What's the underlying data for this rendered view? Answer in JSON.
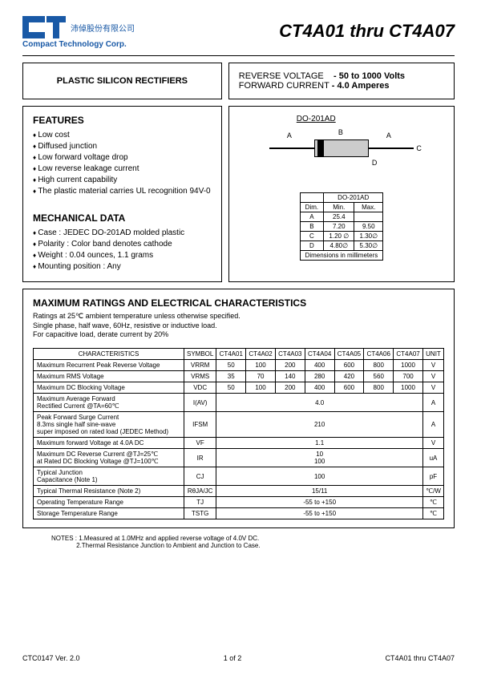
{
  "company": {
    "name_cn": "沛倬股份有限公司",
    "name_en": "Compact Technology Corp."
  },
  "title": "CT4A01 thru CT4A07",
  "header_boxes": {
    "left_title": "PLASTIC SILICON RECTIFIERS",
    "rv_label": "REVERSE VOLTAGE",
    "rv_value": "- 50 to 1000 Volts",
    "fc_label": "FORWARD CURRENT",
    "fc_value": "- 4.0 Amperes"
  },
  "features": {
    "title": "FEATURES",
    "items": [
      "Low cost",
      "Diffused junction",
      "Low forward voltage drop",
      "Low reverse leakage current",
      "High current capability",
      "The plastic material carries UL recognition 94V-0"
    ]
  },
  "mechanical": {
    "title": "MECHANICAL DATA",
    "items": [
      "Case : JEDEC DO-201AD molded plastic",
      "Polarity : Color band denotes cathode",
      "Weight : 0.04 ounces, 1.1 grams",
      "Mounting position : Any"
    ]
  },
  "package": {
    "label": "DO-201AD",
    "dim_header": "DO-201AD",
    "cols": [
      "Dim.",
      "Min.",
      "Max."
    ],
    "rows": [
      [
        "A",
        "25.4",
        ""
      ],
      [
        "B",
        "7.20",
        "9.50"
      ],
      [
        "C",
        "1.20 ∅",
        "1.30∅"
      ],
      [
        "D",
        "4.80∅",
        "5.30∅"
      ]
    ],
    "dim_note": "Dimensions in  millimeters",
    "labels": {
      "A1": "A",
      "B": "B",
      "A2": "A",
      "C": "C",
      "D": "D"
    }
  },
  "maxratings": {
    "title": "MAXIMUM RATINGS AND ELECTRICAL CHARACTERISTICS",
    "line1": "Ratings at 25℃ ambient temperature unless otherwise specified.",
    "line2": "Single phase, half wave, 60Hz, resistive or inductive load.",
    "line3": "For capacitive load, derate current by 20%"
  },
  "chartable": {
    "head": [
      "CHARACTERISTICS",
      "SYMBOL",
      "CT4A01",
      "CT4A02",
      "CT4A03",
      "CT4A04",
      "CT4A05",
      "CT4A06",
      "CT4A07",
      "UNIT"
    ],
    "rows": [
      {
        "name": "Maximum Recurrent Peak Reverse Voltage",
        "sym": "VRRM",
        "v": [
          "50",
          "100",
          "200",
          "400",
          "600",
          "800",
          "1000"
        ],
        "unit": "V"
      },
      {
        "name": "Maximum RMS Voltage",
        "sym": "VRMS",
        "v": [
          "35",
          "70",
          "140",
          "280",
          "420",
          "560",
          "700"
        ],
        "unit": "V"
      },
      {
        "name": "Maximum DC Blocking Voltage",
        "sym": "VDC",
        "v": [
          "50",
          "100",
          "200",
          "400",
          "600",
          "800",
          "1000"
        ],
        "unit": "V"
      },
      {
        "name": "Maximum Average Forward<br>Rectified  Current               @TA=60℃",
        "sym": "I(AV)",
        "span": "4.0",
        "unit": "A"
      },
      {
        "name": "Peak Forward Surge Current<br>8.3ms single half sine-wave<br>super imposed on rated load (JEDEC Method)",
        "sym": "IFSM",
        "span": "210",
        "unit": "A"
      },
      {
        "name": "Maximum forward Voltage at 4.0A DC",
        "sym": "VF",
        "span": "1.1",
        "unit": "V"
      },
      {
        "name": "Maximum DC Reverse Current        @TJ=25℃<br>at Rated DC Blocking Voltage         @TJ=100℃",
        "sym": "IR",
        "span": "10<br>100",
        "unit": "uA"
      },
      {
        "name": "Typical Junction<br>Capacitance   (Note 1)",
        "sym": "CJ",
        "span": "100",
        "unit": "pF"
      },
      {
        "name": "Typical Thermal Resistance (Note 2)",
        "sym": "RθJA/JC",
        "span": "15/11",
        "unit": "℃/W"
      },
      {
        "name": "Operating Temperature Range",
        "sym": "TJ",
        "span": "-55 to +150",
        "unit": "℃"
      },
      {
        "name": "Storage Temperature Range",
        "sym": "TSTG",
        "span": "-55 to +150",
        "unit": "℃"
      }
    ]
  },
  "notes": {
    "label": "NOTES :",
    "n1": "1.Measured at 1.0MHz and applied reverse voltage of 4.0V DC.",
    "n2": "2.Thermal Resistance Junction to Ambient and Junction to Case."
  },
  "footer": {
    "left": "CTC0147 Ver. 2.0",
    "center": "1 of 2",
    "right": "CT4A01 thru CT4A07"
  },
  "colors": {
    "brand": "#1959a6",
    "border": "#000000",
    "bg": "#ffffff"
  }
}
